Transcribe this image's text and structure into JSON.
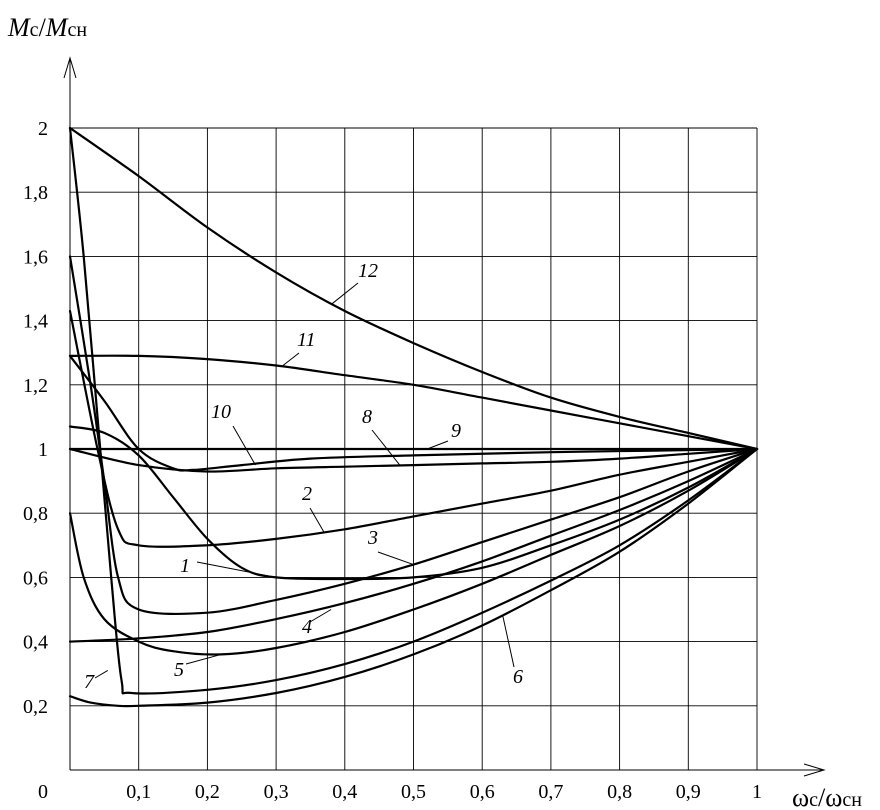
{
  "chart_data": {
    "type": "line",
    "ylabel": {
      "main": "M",
      "sub1": "с",
      "slash": "/",
      "main2": "M",
      "sub2": "сн"
    },
    "xlabel": {
      "main": "ω",
      "sub1": "с",
      "slash": "/",
      "main2": "ω",
      "sub2": "сн"
    },
    "origin_label": "0",
    "xlim": [
      0,
      1
    ],
    "ylim": [
      0,
      2
    ],
    "grid": true,
    "x_ticks": [
      "0,1",
      "0,2",
      "0,3",
      "0,4",
      "0,5",
      "0,6",
      "0,7",
      "0,8",
      "0,9",
      "1"
    ],
    "x_tick_values": [
      0.1,
      0.2,
      0.3,
      0.4,
      0.5,
      0.6,
      0.7,
      0.8,
      0.9,
      1
    ],
    "y_ticks": [
      "0,2",
      "0,4",
      "0,6",
      "0,8",
      "1",
      "1,2",
      "1,4",
      "1,6",
      "1,8",
      "2"
    ],
    "y_tick_values": [
      0.2,
      0.4,
      0.6,
      0.8,
      1,
      1.2,
      1.4,
      1.6,
      1.8,
      2
    ],
    "series": [
      {
        "name": "1",
        "points": [
          [
            0,
            1.07
          ],
          [
            0.05,
            1.05
          ],
          [
            0.1,
            0.98
          ],
          [
            0.15,
            0.85
          ],
          [
            0.2,
            0.72
          ],
          [
            0.25,
            0.63
          ],
          [
            0.3,
            0.6
          ],
          [
            0.4,
            0.595
          ],
          [
            0.5,
            0.6
          ],
          [
            0.6,
            0.63
          ],
          [
            0.7,
            0.7
          ],
          [
            0.8,
            0.78
          ],
          [
            0.9,
            0.88
          ],
          [
            1,
            1
          ]
        ]
      },
      {
        "name": "2",
        "points": [
          [
            0,
            1.43
          ],
          [
            0.04,
            1.0
          ],
          [
            0.07,
            0.75
          ],
          [
            0.1,
            0.7
          ],
          [
            0.2,
            0.7
          ],
          [
            0.3,
            0.72
          ],
          [
            0.4,
            0.75
          ],
          [
            0.5,
            0.79
          ],
          [
            0.6,
            0.83
          ],
          [
            0.7,
            0.87
          ],
          [
            0.8,
            0.92
          ],
          [
            0.9,
            0.96
          ],
          [
            1,
            1
          ]
        ]
      },
      {
        "name": "3",
        "points": [
          [
            0,
            1.6
          ],
          [
            0.03,
            1.2
          ],
          [
            0.05,
            0.9
          ],
          [
            0.07,
            0.6
          ],
          [
            0.1,
            0.5
          ],
          [
            0.2,
            0.49
          ],
          [
            0.3,
            0.53
          ],
          [
            0.4,
            0.58
          ],
          [
            0.5,
            0.64
          ],
          [
            0.6,
            0.71
          ],
          [
            0.7,
            0.78
          ],
          [
            0.8,
            0.85
          ],
          [
            0.9,
            0.93
          ],
          [
            1,
            1
          ]
        ]
      },
      {
        "name": "4",
        "points": [
          [
            0,
            0.4
          ],
          [
            0.1,
            0.41
          ],
          [
            0.2,
            0.43
          ],
          [
            0.3,
            0.47
          ],
          [
            0.4,
            0.52
          ],
          [
            0.5,
            0.58
          ],
          [
            0.6,
            0.65
          ],
          [
            0.7,
            0.73
          ],
          [
            0.8,
            0.81
          ],
          [
            0.9,
            0.9
          ],
          [
            1,
            1
          ]
        ]
      },
      {
        "name": "5",
        "points": [
          [
            0,
            0.8
          ],
          [
            0.02,
            0.6
          ],
          [
            0.05,
            0.47
          ],
          [
            0.1,
            0.4
          ],
          [
            0.15,
            0.37
          ],
          [
            0.22,
            0.36
          ],
          [
            0.3,
            0.38
          ],
          [
            0.4,
            0.43
          ],
          [
            0.5,
            0.5
          ],
          [
            0.6,
            0.58
          ],
          [
            0.7,
            0.67
          ],
          [
            0.8,
            0.76
          ],
          [
            0.9,
            0.87
          ],
          [
            1,
            1
          ]
        ]
      },
      {
        "name": "6",
        "points": [
          [
            0,
            0.23
          ],
          [
            0.03,
            0.21
          ],
          [
            0.07,
            0.2
          ],
          [
            0.1,
            0.2
          ],
          [
            0.2,
            0.21
          ],
          [
            0.3,
            0.24
          ],
          [
            0.4,
            0.29
          ],
          [
            0.5,
            0.36
          ],
          [
            0.6,
            0.45
          ],
          [
            0.7,
            0.56
          ],
          [
            0.8,
            0.68
          ],
          [
            0.9,
            0.83
          ],
          [
            1,
            1
          ]
        ]
      },
      {
        "name": "7",
        "points": [
          [
            0,
            2.0
          ],
          [
            0.02,
            1.6
          ],
          [
            0.04,
            1.1
          ],
          [
            0.06,
            0.6
          ],
          [
            0.075,
            0.28
          ],
          [
            0.09,
            0.24
          ],
          [
            0.2,
            0.25
          ],
          [
            0.3,
            0.28
          ],
          [
            0.4,
            0.33
          ],
          [
            0.5,
            0.4
          ],
          [
            0.6,
            0.49
          ],
          [
            0.7,
            0.59
          ],
          [
            0.8,
            0.7
          ],
          [
            0.9,
            0.84
          ],
          [
            1,
            1
          ]
        ]
      },
      {
        "name": "8",
        "points": [
          [
            0,
            1.0
          ],
          [
            0.1,
            0.95
          ],
          [
            0.2,
            0.93
          ],
          [
            0.3,
            0.94
          ],
          [
            0.4,
            0.945
          ],
          [
            0.5,
            0.95
          ],
          [
            0.6,
            0.955
          ],
          [
            0.7,
            0.96
          ],
          [
            0.8,
            0.97
          ],
          [
            0.9,
            0.985
          ],
          [
            1,
            1
          ]
        ]
      },
      {
        "name": "9",
        "points": [
          [
            0,
            1.0
          ],
          [
            0.2,
            1.0
          ],
          [
            0.4,
            1.0
          ],
          [
            0.6,
            1.0
          ],
          [
            0.8,
            1.0
          ],
          [
            1,
            1.0
          ]
        ]
      },
      {
        "name": "10",
        "points": [
          [
            0,
            1.29
          ],
          [
            0.05,
            1.15
          ],
          [
            0.1,
            1.0
          ],
          [
            0.15,
            0.94
          ],
          [
            0.18,
            0.935
          ],
          [
            0.25,
            0.95
          ],
          [
            0.35,
            0.97
          ],
          [
            0.5,
            0.98
          ],
          [
            0.7,
            0.99
          ],
          [
            0.85,
            0.995
          ],
          [
            1,
            1
          ]
        ]
      },
      {
        "name": "11",
        "points": [
          [
            0,
            1.29
          ],
          [
            0.1,
            1.29
          ],
          [
            0.2,
            1.28
          ],
          [
            0.3,
            1.26
          ],
          [
            0.4,
            1.23
          ],
          [
            0.5,
            1.2
          ],
          [
            0.6,
            1.16
          ],
          [
            0.7,
            1.12
          ],
          [
            0.8,
            1.08
          ],
          [
            0.9,
            1.04
          ],
          [
            1,
            1
          ]
        ]
      },
      {
        "name": "12",
        "points": [
          [
            0,
            2.0
          ],
          [
            0.1,
            1.85
          ],
          [
            0.2,
            1.69
          ],
          [
            0.3,
            1.55
          ],
          [
            0.4,
            1.43
          ],
          [
            0.5,
            1.33
          ],
          [
            0.6,
            1.24
          ],
          [
            0.7,
            1.16
          ],
          [
            0.8,
            1.1
          ],
          [
            0.9,
            1.05
          ],
          [
            1,
            1
          ]
        ]
      }
    ]
  }
}
